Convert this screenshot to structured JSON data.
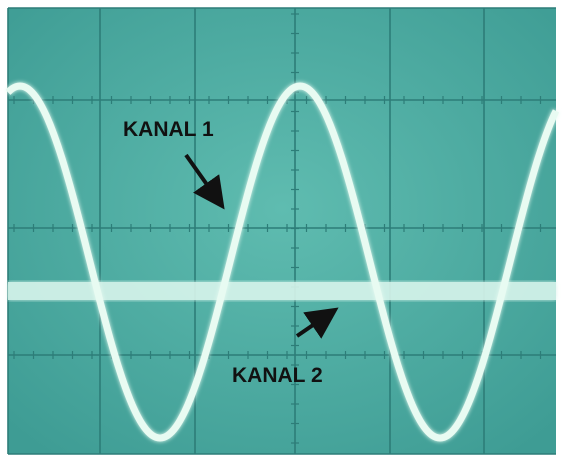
{
  "labels": {
    "channel_1": "KANAL 1",
    "channel_2": "KANAL 2"
  }
}
